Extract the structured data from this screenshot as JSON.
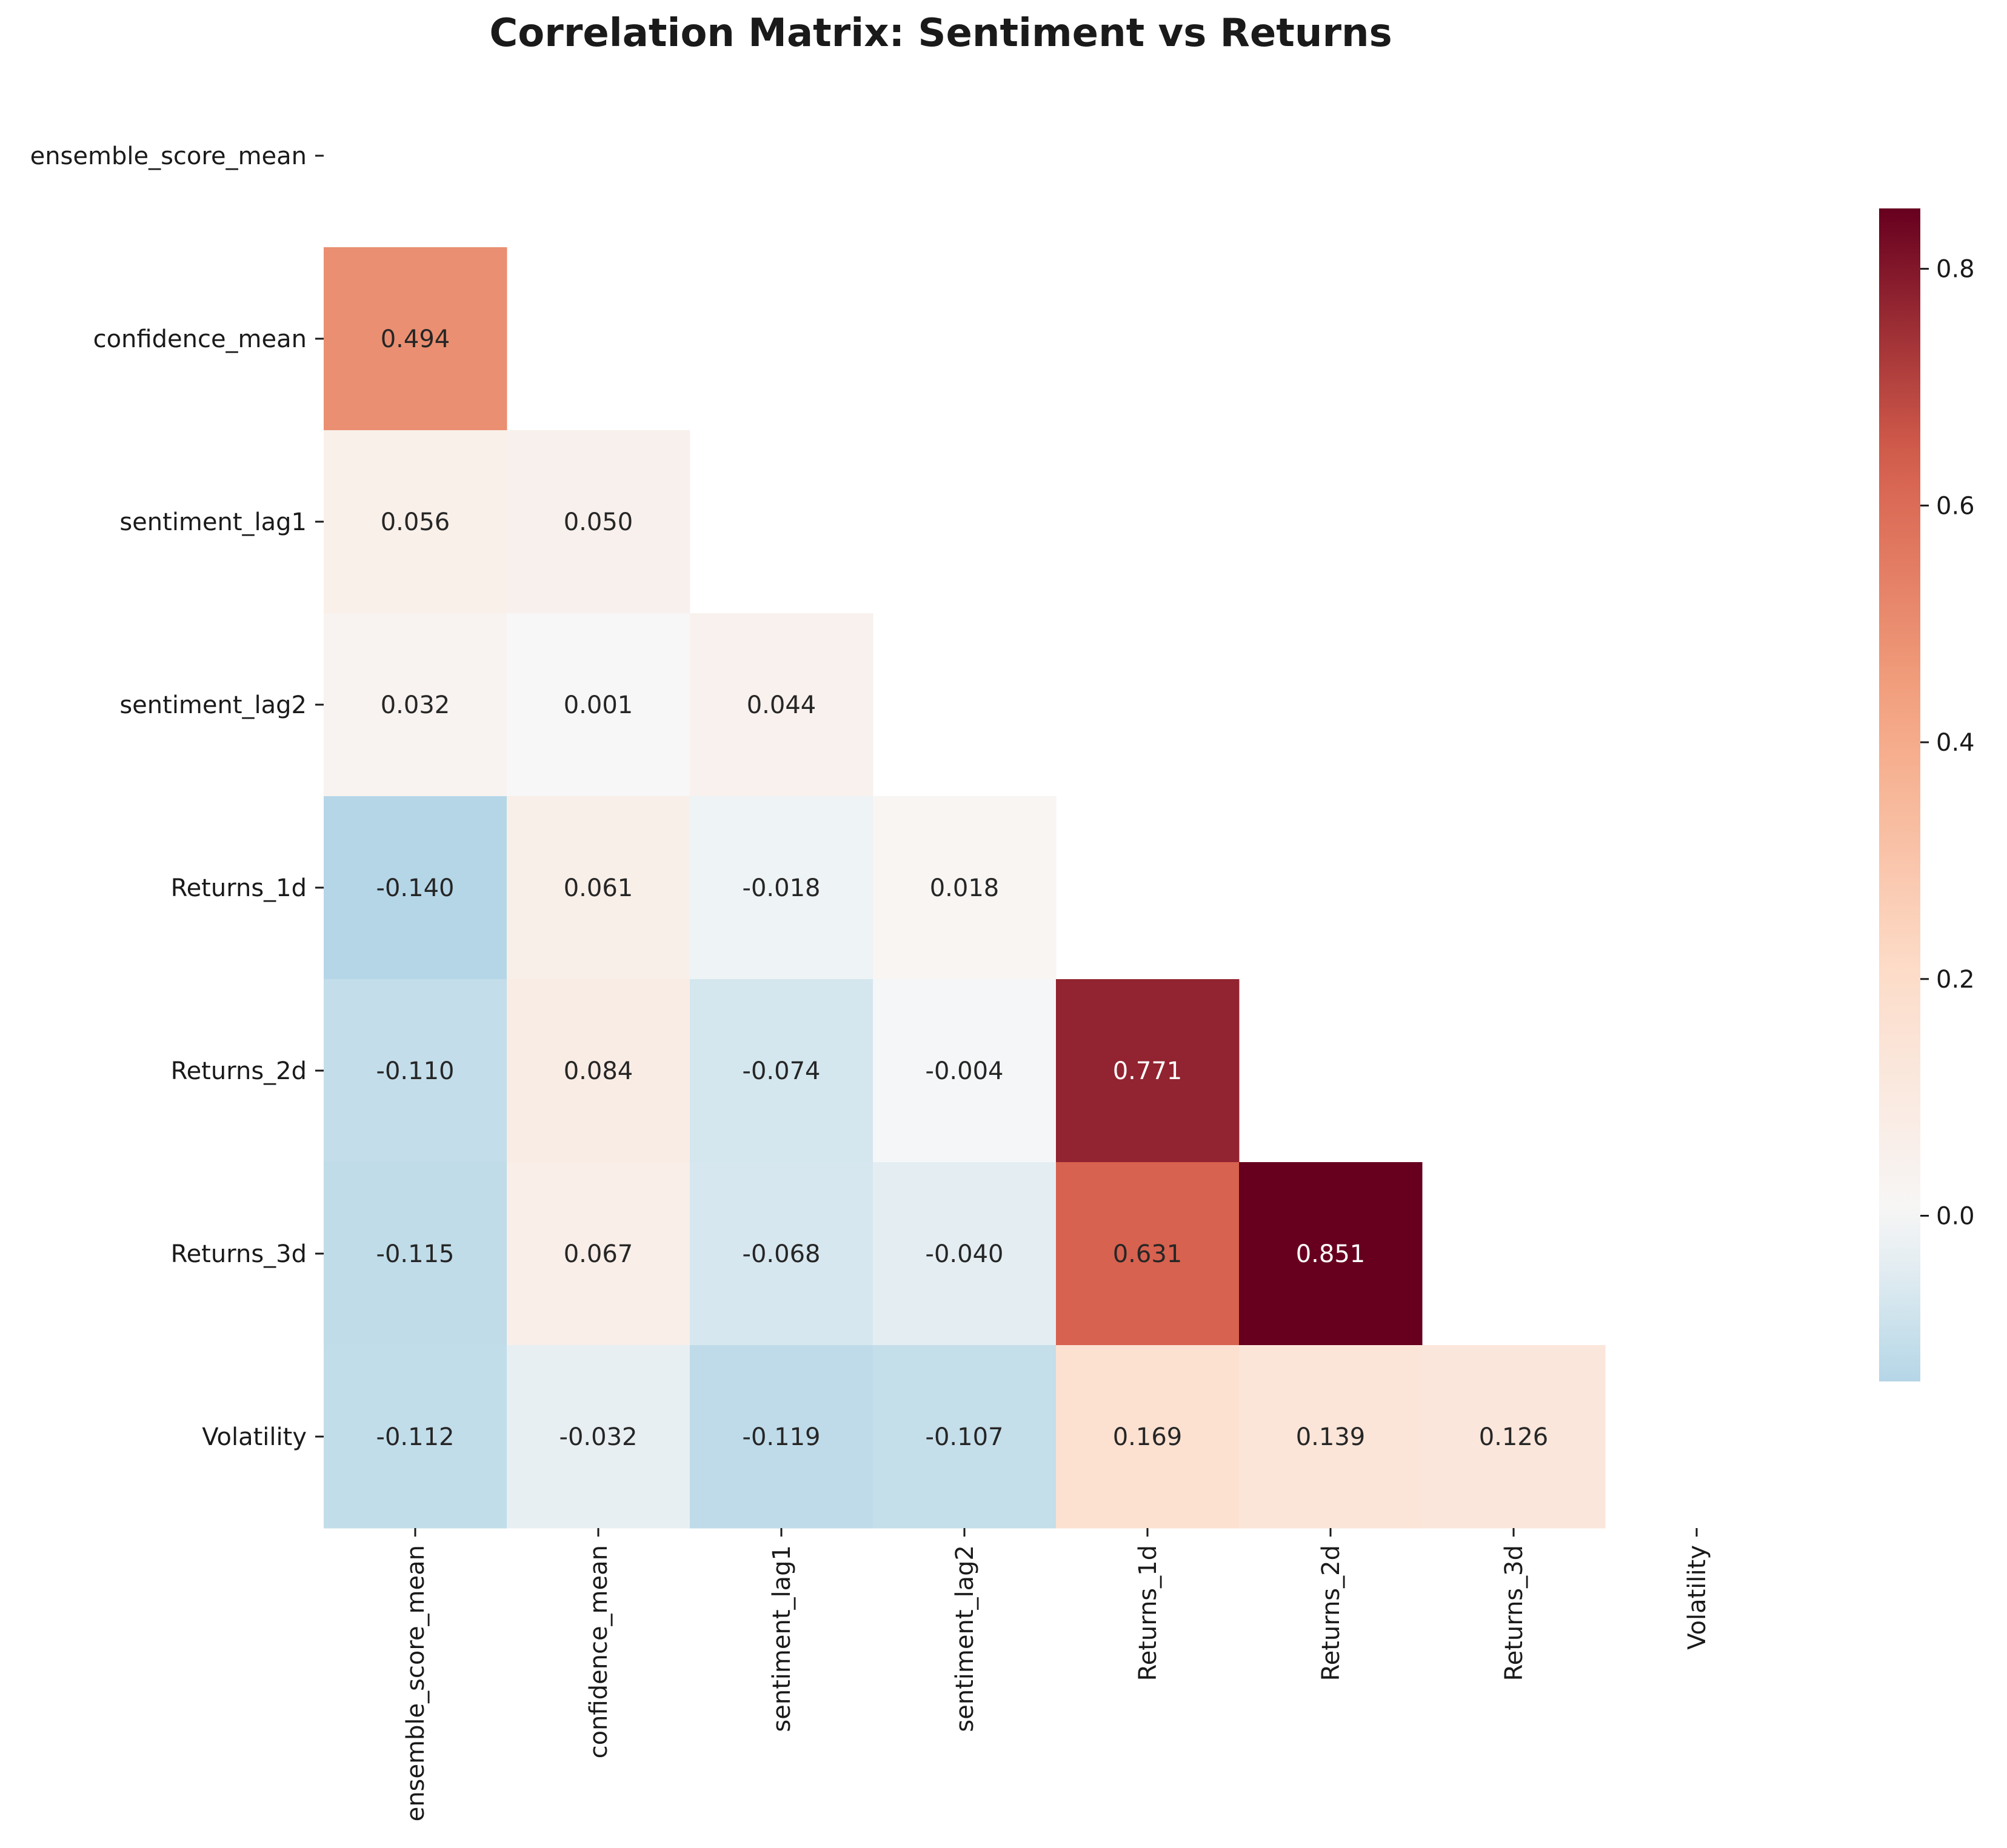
{
  "chart_data": {
    "type": "heatmap",
    "title": "Correlation Matrix: Sentiment vs Returns",
    "row_labels": [
      "ensemble_score_mean",
      "confidence_mean",
      "sentiment_lag1",
      "sentiment_lag2",
      "Returns_1d",
      "Returns_2d",
      "Returns_3d",
      "Volatility"
    ],
    "col_labels": [
      "ensemble_score_mean",
      "confidence_mean",
      "sentiment_lag1",
      "sentiment_lag2",
      "Returns_1d",
      "Returns_2d",
      "Returns_3d",
      "Volatility"
    ],
    "mask": "upper triangle and diagonal hidden",
    "values": [
      [
        null,
        null,
        null,
        null,
        null,
        null,
        null,
        null
      ],
      [
        0.494,
        null,
        null,
        null,
        null,
        null,
        null,
        null
      ],
      [
        0.056,
        0.05,
        null,
        null,
        null,
        null,
        null,
        null
      ],
      [
        0.032,
        0.001,
        0.044,
        null,
        null,
        null,
        null,
        null
      ],
      [
        -0.14,
        0.061,
        -0.018,
        0.018,
        null,
        null,
        null,
        null
      ],
      [
        -0.11,
        0.084,
        -0.074,
        -0.004,
        0.771,
        null,
        null,
        null
      ],
      [
        -0.115,
        0.067,
        -0.068,
        -0.04,
        0.631,
        0.851,
        null,
        null
      ],
      [
        -0.112,
        -0.032,
        -0.119,
        -0.107,
        0.169,
        0.139,
        0.126,
        null
      ]
    ],
    "annotations": [
      [
        null,
        null,
        null,
        null,
        null,
        null,
        null,
        null
      ],
      [
        "0.494",
        null,
        null,
        null,
        null,
        null,
        null,
        null
      ],
      [
        "0.056",
        "0.050",
        null,
        null,
        null,
        null,
        null,
        null
      ],
      [
        "0.032",
        "0.001",
        "0.044",
        null,
        null,
        null,
        null,
        null
      ],
      [
        "-0.140",
        "0.061",
        "-0.018",
        "0.018",
        null,
        null,
        null,
        null
      ],
      [
        "-0.110",
        "0.084",
        "-0.074",
        "-0.004",
        "0.771",
        null,
        null,
        null
      ],
      [
        "-0.115",
        "0.067",
        "-0.068",
        "-0.040",
        "0.631",
        "0.851",
        null,
        null
      ],
      [
        "-0.112",
        "-0.032",
        "-0.119",
        "-0.107",
        "0.169",
        "0.139",
        "0.126",
        null
      ]
    ],
    "colorscale": {
      "name": "RdBu_r",
      "center": 0,
      "vmin": -0.14,
      "vmax": 0.851,
      "ticks": [
        0.0,
        0.2,
        0.4,
        0.6,
        0.8
      ],
      "tick_labels": [
        "0.0",
        "0.2",
        "0.4",
        "0.6",
        "0.8"
      ]
    },
    "legend": "colorbar right",
    "grid": false
  }
}
